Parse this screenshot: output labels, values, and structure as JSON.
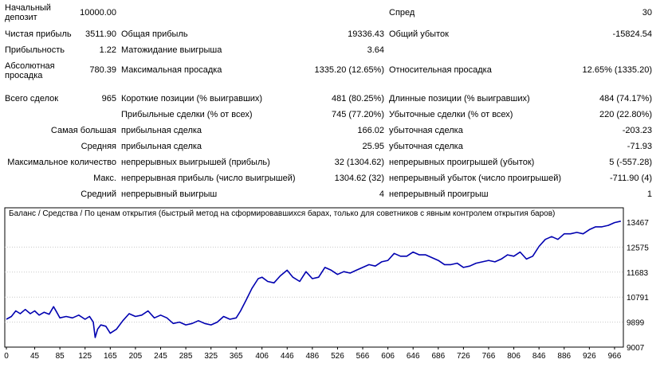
{
  "stats": {
    "row1": {
      "label": "Начальный депозит",
      "value": "10000.00",
      "label3": "Спред",
      "value3": "30"
    },
    "row2": {
      "label": "Чистая прибыль",
      "value": "3511.90",
      "label2": "Общая прибыль",
      "value2": "19336.43",
      "label3": "Общий убыток",
      "value3": "-15824.54"
    },
    "row3": {
      "label": "Прибыльность",
      "value": "1.22",
      "label2": "Матожидание выигрыша",
      "value2": "3.64"
    },
    "row4": {
      "label": "Абсолютная просадка",
      "value": "780.39",
      "label2": "Максимальная просадка",
      "value2": "1335.20 (12.65%)",
      "label3": "Относительная просадка",
      "value3": "12.65% (1335.20)"
    },
    "row5": {
      "label": "Всего сделок",
      "value": "965",
      "label2": "Короткие позиции (% выигравших)",
      "value2": "481 (80.25%)",
      "label3": "Длинные позиции (% выигравших)",
      "value3": "484 (74.17%)"
    },
    "row6": {
      "label2": "Прибыльные сделки (% от всех)",
      "value2": "745 (77.20%)",
      "label3": "Убыточные сделки (% от всех)",
      "value3": "220 (22.80%)"
    },
    "row7": {
      "label": "Самая большая",
      "label2": "прибыльная сделка",
      "value2": "166.02",
      "label3": "убыточная сделка",
      "value3": "-203.23"
    },
    "row8": {
      "label": "Средняя",
      "label2": "прибыльная сделка",
      "value2": "25.95",
      "label3": "убыточная сделка",
      "value3": "-71.93"
    },
    "row9": {
      "label": "Максимальное количество",
      "label2": "непрерывных выигрышей (прибыль)",
      "value2": "32 (1304.62)",
      "label3": "непрерывных проигрышей (убыток)",
      "value3": "5 (-557.28)"
    },
    "row10": {
      "label": "Макс.",
      "label2": "непрерывная прибыль (число выигрышей)",
      "value2": "1304.62 (32)",
      "label3": "непрерывный убыток (число проигрышей)",
      "value3": "-711.90 (4)"
    },
    "row11": {
      "label": "Средний",
      "label2": "непрерывный выигрыш",
      "value2": "4",
      "label3": "непрерывный проигрыш",
      "value3": "1"
    }
  },
  "chart_legend": {
    "balance": "Баланс",
    "sep1": " / ",
    "equity": "Средства",
    "sep2": " / ",
    "model": "По ценам открытия (быстрый метод на сформировавшихся барах, только для советников с явным контролем открытия баров)"
  },
  "colors": {
    "balance": "#0000b0",
    "equity": "#00a000",
    "model": "#c00000",
    "grid": "#c8c8c8"
  },
  "chart_data": {
    "type": "line",
    "title": "",
    "xlabel": "",
    "ylabel": "",
    "xlim": [
      0,
      980
    ],
    "ylim": [
      9007,
      13900
    ],
    "x_ticks": [
      "0",
      "45",
      "85",
      "125",
      "165",
      "205",
      "245",
      "285",
      "325",
      "365",
      "406",
      "446",
      "486",
      "526",
      "566",
      "606",
      "646",
      "686",
      "726",
      "766",
      "806",
      "846",
      "886",
      "926",
      "966"
    ],
    "y_ticks": [
      "13467",
      "12575",
      "11683",
      "10791",
      "9899",
      "9007"
    ],
    "series": [
      {
        "name": "Баланс",
        "x": [
          0,
          8,
          15,
          22,
          30,
          38,
          45,
          52,
          60,
          68,
          75,
          80,
          85,
          95,
          105,
          115,
          125,
          132,
          138,
          141,
          145,
          150,
          158,
          165,
          175,
          185,
          195,
          205,
          215,
          225,
          235,
          245,
          255,
          265,
          275,
          285,
          295,
          305,
          315,
          325,
          335,
          345,
          355,
          365,
          372,
          380,
          390,
          400,
          406,
          415,
          425,
          435,
          446,
          455,
          466,
          476,
          486,
          496,
          506,
          516,
          526,
          536,
          546,
          556,
          566,
          576,
          586,
          596,
          606,
          616,
          626,
          636,
          646,
          656,
          666,
          676,
          686,
          696,
          706,
          716,
          726,
          736,
          746,
          756,
          766,
          776,
          786,
          796,
          806,
          816,
          826,
          836,
          846,
          856,
          866,
          876,
          886,
          896,
          906,
          916,
          926,
          936,
          946,
          956,
          966,
          976
        ],
        "y": [
          10000,
          10100,
          10300,
          10200,
          10350,
          10200,
          10300,
          10150,
          10250,
          10180,
          10450,
          10250,
          10050,
          10100,
          10050,
          10150,
          10000,
          10100,
          9900,
          9350,
          9650,
          9800,
          9750,
          9500,
          9650,
          9950,
          10200,
          10100,
          10150,
          10300,
          10050,
          10150,
          10050,
          9850,
          9900,
          9800,
          9850,
          9950,
          9850,
          9800,
          9900,
          10100,
          10000,
          10050,
          10300,
          10650,
          11100,
          11450,
          11500,
          11350,
          11300,
          11550,
          11750,
          11500,
          11350,
          11700,
          11450,
          11500,
          11850,
          11750,
          11600,
          11700,
          11650,
          11750,
          11850,
          11950,
          11900,
          12050,
          12100,
          12350,
          12250,
          12250,
          12400,
          12300,
          12300,
          12200,
          12100,
          11950,
          11950,
          12000,
          11850,
          11900,
          12000,
          12050,
          12100,
          12050,
          12150,
          12300,
          12250,
          12400,
          12150,
          12250,
          12600,
          12850,
          12950,
          12850,
          13050,
          13050,
          13100,
          13050,
          13200,
          13300,
          13300,
          13350,
          13450,
          13500
        ]
      }
    ]
  }
}
